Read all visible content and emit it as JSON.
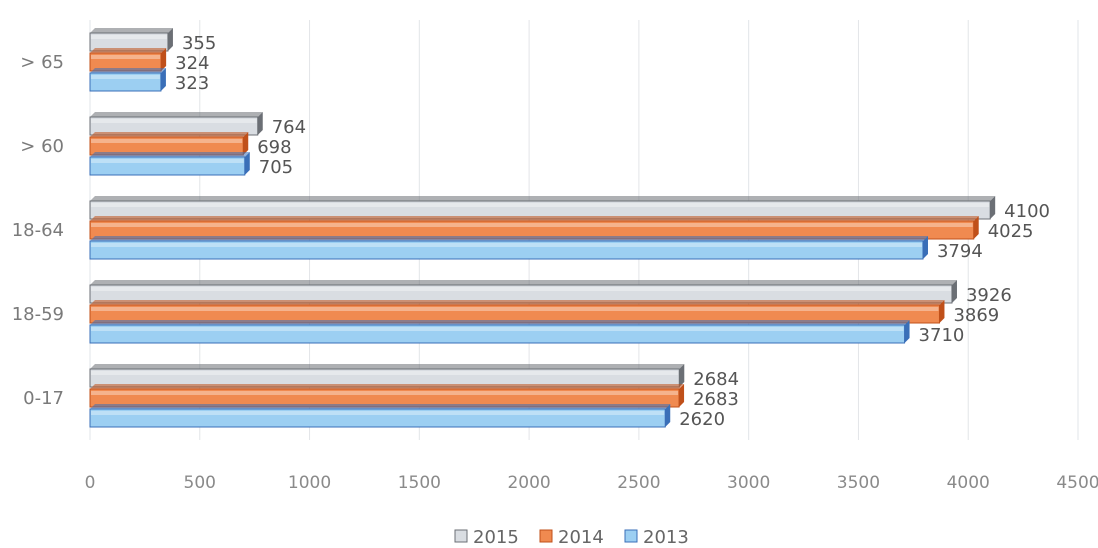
{
  "chart_data": {
    "type": "bar",
    "orientation": "horizontal",
    "categories": [
      "0-17",
      "18-59",
      "18-64",
      "> 60",
      "> 65"
    ],
    "series": [
      {
        "name": "2015",
        "color": "#d9dde2",
        "edge": "#6b6f75",
        "values": [
          2684,
          3926,
          4100,
          764,
          355
        ]
      },
      {
        "name": "2014",
        "color": "#f08a50",
        "edge": "#c0501a",
        "values": [
          2683,
          3869,
          4025,
          698,
          324
        ]
      },
      {
        "name": "2013",
        "color": "#9ccff2",
        "edge": "#3a6fb8",
        "values": [
          2620,
          3710,
          3794,
          705,
          323
        ]
      }
    ],
    "x_ticks": [
      "0",
      "500",
      "1000",
      "1500",
      "2000",
      "2500",
      "3000",
      "3500",
      "4000",
      "4500"
    ],
    "xlim": [
      0,
      4500
    ],
    "grid": true,
    "legend_position": "bottom"
  }
}
